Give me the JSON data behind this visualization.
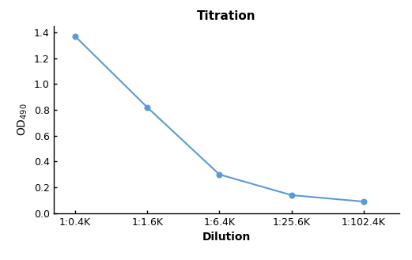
{
  "title": "Titration",
  "xlabel": "Dilution",
  "x_labels": [
    "1:0.4K",
    "1:1.6K",
    "1:6.4K",
    "1:25.6K",
    "1:102.4K"
  ],
  "x_positions": [
    0,
    1,
    2,
    3,
    4
  ],
  "y_values": [
    1.37,
    0.82,
    0.3,
    0.14,
    0.09
  ],
  "ylim": [
    0.0,
    1.45
  ],
  "yticks": [
    0.0,
    0.2,
    0.4,
    0.6,
    0.8,
    1.0,
    1.2,
    1.4
  ],
  "line_color": "#5B9BD5",
  "marker_color": "#5B9BD5",
  "marker_style": "o",
  "marker_size": 5,
  "line_width": 1.5,
  "background_color": "#ffffff",
  "title_fontsize": 11,
  "label_fontsize": 10,
  "tick_fontsize": 9,
  "spine_color": "#000000",
  "xlim_left": -0.3,
  "xlim_right": 4.5
}
